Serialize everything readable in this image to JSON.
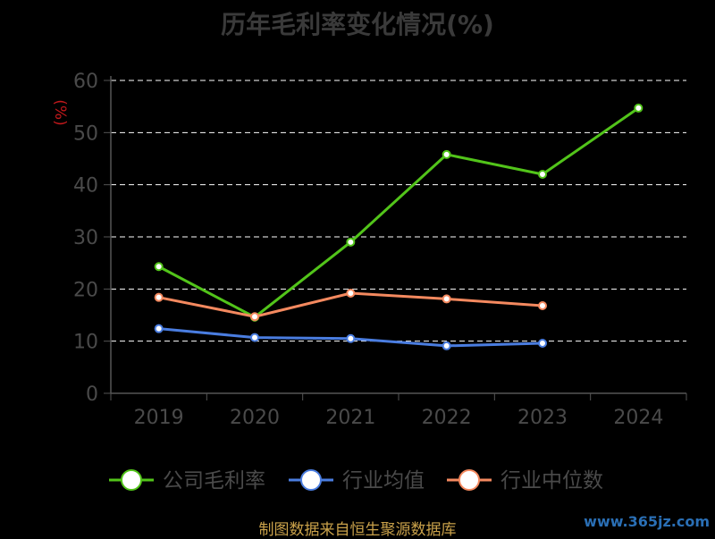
{
  "chart_data": {
    "type": "line",
    "title": "历年毛利率变化情况(%)",
    "ylabel": "(%)",
    "xlabel": "",
    "categories": [
      "2019",
      "2020",
      "2021",
      "2022",
      "2023",
      "2024"
    ],
    "ylim": [
      0,
      60
    ],
    "yticks": [
      0,
      10,
      20,
      30,
      40,
      50,
      60
    ],
    "grid": true,
    "legend": "bottom",
    "series": [
      {
        "name": "公司毛利率",
        "color": "#52c41a",
        "values": [
          24.3,
          14.6,
          29.0,
          45.8,
          42.0,
          54.7
        ]
      },
      {
        "name": "行业均值",
        "color": "#4a7de0",
        "values": [
          12.4,
          10.7,
          10.5,
          9.1,
          9.6,
          null
        ]
      },
      {
        "name": "行业中位数",
        "color": "#f4895f",
        "values": [
          18.4,
          14.7,
          19.2,
          18.1,
          16.8,
          null
        ]
      }
    ]
  },
  "footer": {
    "source": "制图数据来自恒生聚源数据库",
    "watermark": "www.365jz.com"
  }
}
